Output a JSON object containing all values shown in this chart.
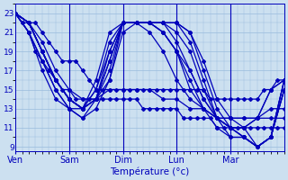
{
  "xlabel": "Température (°c)",
  "bg_color": "#cce0f0",
  "line_color": "#0000bb",
  "grid_color": "#99bbdd",
  "ylim": [
    8.5,
    24.0
  ],
  "yticks": [
    9,
    11,
    13,
    15,
    17,
    19,
    21,
    23
  ],
  "day_labels": [
    "Ven",
    "Sam",
    "Dim",
    "Lun",
    "Mar"
  ],
  "day_positions": [
    0,
    24,
    48,
    72,
    96
  ],
  "xlim": [
    0,
    120
  ],
  "lines": [
    [
      0,
      23,
      3,
      22,
      6,
      21,
      9,
      19,
      12,
      18,
      15,
      17,
      18,
      16,
      21,
      15,
      24,
      15,
      27,
      14,
      30,
      14,
      33,
      14,
      36,
      14,
      39,
      14,
      42,
      14,
      45,
      14,
      48,
      14,
      51,
      14,
      54,
      14,
      57,
      13,
      60,
      13,
      63,
      13,
      66,
      13,
      69,
      13,
      72,
      13,
      75,
      12,
      78,
      12,
      81,
      12,
      84,
      12,
      87,
      12,
      90,
      11,
      93,
      11,
      96,
      11,
      99,
      11,
      102,
      11,
      105,
      11,
      108,
      11,
      111,
      11,
      114,
      11,
      117,
      11,
      120,
      11
    ],
    [
      0,
      23,
      6,
      22,
      12,
      20,
      18,
      17,
      24,
      15,
      30,
      14,
      36,
      14,
      42,
      15,
      48,
      15,
      54,
      15,
      60,
      15,
      66,
      14,
      72,
      14,
      78,
      13,
      84,
      13,
      90,
      12,
      96,
      12,
      102,
      12,
      108,
      12,
      114,
      12,
      120,
      12
    ],
    [
      0,
      23,
      6,
      22,
      12,
      19,
      18,
      16,
      24,
      14,
      30,
      13,
      36,
      14,
      42,
      16,
      48,
      22,
      54,
      22,
      60,
      22,
      66,
      21,
      72,
      19,
      78,
      15,
      84,
      13,
      90,
      12,
      96,
      12,
      102,
      12,
      108,
      12,
      114,
      13,
      120,
      13
    ],
    [
      0,
      23,
      6,
      22,
      12,
      19,
      18,
      16,
      24,
      14,
      30,
      13,
      36,
      14,
      42,
      17,
      48,
      22,
      54,
      22,
      60,
      22,
      66,
      22,
      72,
      20,
      78,
      17,
      84,
      14,
      90,
      12,
      96,
      11,
      102,
      11,
      108,
      12,
      114,
      15,
      120,
      16
    ],
    [
      0,
      23,
      6,
      22,
      12,
      19,
      18,
      16,
      24,
      14,
      30,
      13,
      36,
      14,
      42,
      18,
      48,
      22,
      54,
      22,
      60,
      22,
      66,
      22,
      72,
      21,
      78,
      19,
      84,
      15,
      90,
      12,
      96,
      11,
      102,
      11,
      108,
      12,
      114,
      15,
      120,
      16
    ],
    [
      0,
      23,
      6,
      22,
      12,
      19,
      18,
      16,
      24,
      14,
      30,
      13,
      36,
      14,
      42,
      19,
      48,
      22,
      54,
      22,
      60,
      22,
      66,
      22,
      72,
      22,
      78,
      20,
      84,
      16,
      90,
      12,
      96,
      11,
      102,
      10,
      108,
      9,
      114,
      10,
      120,
      16
    ],
    [
      0,
      23,
      6,
      22,
      12,
      19,
      18,
      16,
      24,
      14,
      30,
      13,
      36,
      15,
      42,
      20,
      48,
      22,
      54,
      22,
      60,
      22,
      66,
      22,
      72,
      22,
      78,
      21,
      84,
      17,
      90,
      13,
      96,
      11,
      102,
      10,
      108,
      9,
      114,
      10,
      120,
      16
    ],
    [
      0,
      23,
      6,
      22,
      12,
      19,
      18,
      16,
      24,
      14,
      30,
      13,
      36,
      16,
      42,
      21,
      48,
      22,
      54,
      22,
      60,
      22,
      66,
      22,
      72,
      22,
      78,
      21,
      84,
      18,
      90,
      14,
      96,
      12,
      102,
      11,
      108,
      9,
      114,
      10,
      120,
      16
    ],
    [
      0,
      23,
      6,
      21,
      12,
      18,
      18,
      15,
      24,
      13,
      30,
      12,
      36,
      13,
      42,
      16,
      48,
      21,
      54,
      22,
      60,
      21,
      66,
      19,
      72,
      16,
      78,
      14,
      84,
      13,
      90,
      12,
      96,
      11,
      102,
      10,
      108,
      9,
      114,
      10,
      120,
      15
    ],
    [
      0,
      23,
      6,
      21,
      12,
      18,
      18,
      15,
      24,
      13,
      30,
      12,
      36,
      14,
      42,
      18,
      48,
      22,
      54,
      22,
      60,
      22,
      66,
      21,
      72,
      19,
      78,
      16,
      84,
      13,
      90,
      11,
      96,
      10,
      102,
      10,
      108,
      9,
      114,
      10,
      120,
      15
    ],
    [
      0,
      23,
      6,
      21,
      12,
      17,
      18,
      14,
      24,
      13,
      30,
      13,
      36,
      15,
      42,
      19,
      48,
      22,
      54,
      22,
      60,
      22,
      66,
      21,
      72,
      19,
      78,
      17,
      84,
      14,
      90,
      12,
      96,
      10,
      102,
      10,
      108,
      9,
      114,
      10,
      120,
      15
    ],
    [
      0,
      23,
      3,
      22,
      6,
      22,
      9,
      22,
      12,
      21,
      15,
      20,
      18,
      19,
      21,
      18,
      24,
      18,
      27,
      18,
      30,
      17,
      33,
      16,
      36,
      15,
      39,
      15,
      42,
      15,
      45,
      15,
      48,
      15,
      51,
      15,
      54,
      15,
      57,
      15,
      60,
      15,
      63,
      15,
      66,
      15,
      69,
      15,
      72,
      15,
      75,
      15,
      78,
      15,
      81,
      15,
      84,
      15,
      87,
      14,
      90,
      14,
      93,
      14,
      96,
      14,
      99,
      14,
      102,
      14,
      105,
      14,
      108,
      14,
      111,
      15,
      114,
      15,
      117,
      16,
      120,
      16
    ]
  ]
}
